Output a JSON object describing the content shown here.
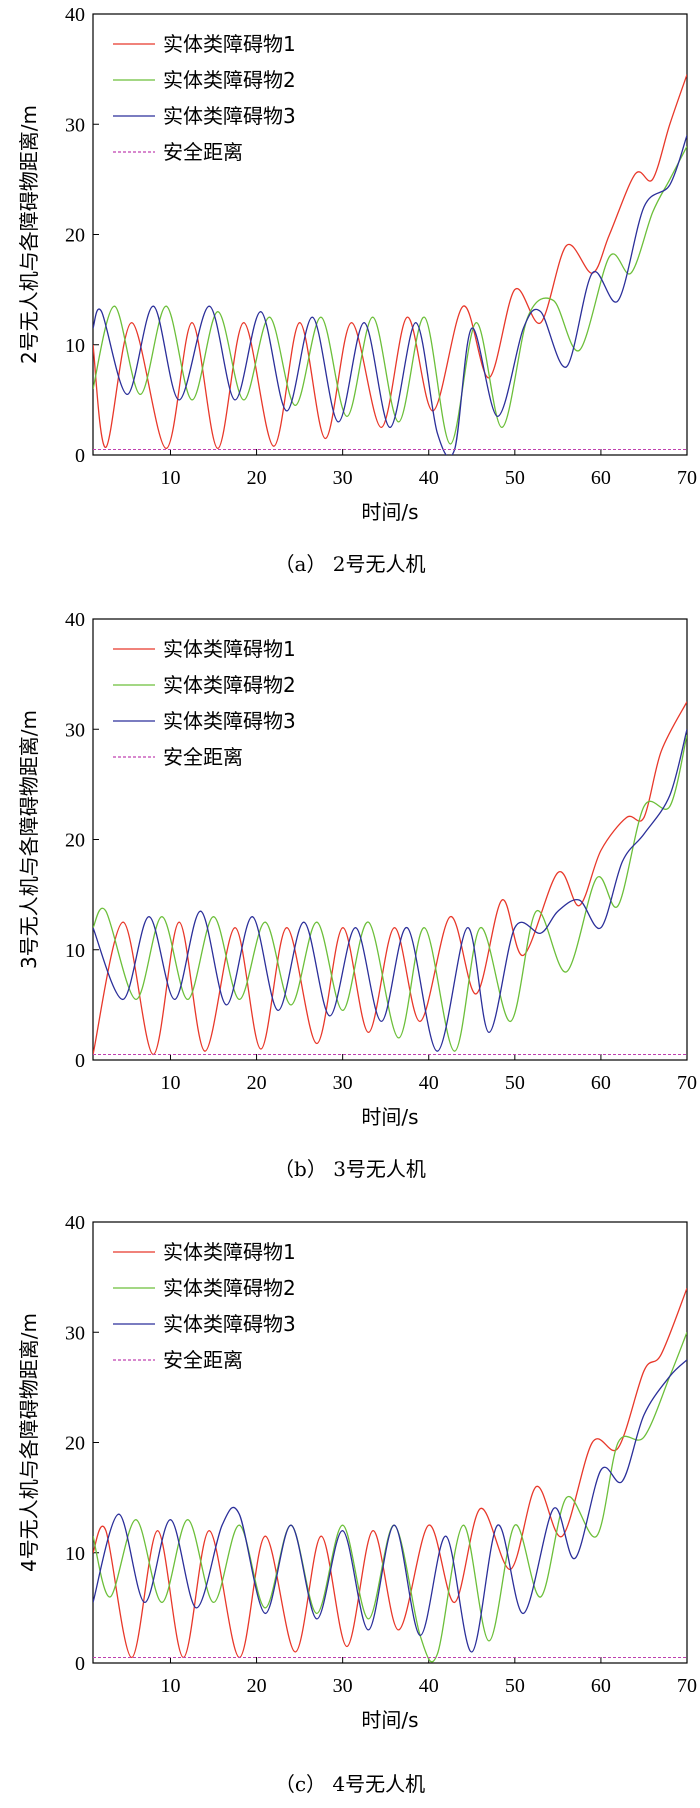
{
  "chart_data": [
    {
      "type": "line",
      "caption": "（a） 2号无人机",
      "xlabel": "时间/s",
      "ylabel": "2号无人机与各障碍物距离/m",
      "xlim": [
        1,
        70
      ],
      "ylim": [
        0,
        40
      ],
      "xticks": [
        10,
        20,
        30,
        40,
        50,
        60,
        70
      ],
      "yticks": [
        0,
        10,
        20,
        30,
        40
      ],
      "legend_position": "top-left",
      "colors": [
        "#e8382a",
        "#6cbf3a",
        "#2b2f9a",
        "#c040b0"
      ],
      "series": [
        {
          "name": "实体类障碍物1",
          "x": [
            1,
            2.5,
            5.5,
            9.5,
            12.5,
            15.5,
            18.5,
            22,
            25,
            28,
            31,
            34.5,
            37.5,
            40.5,
            44,
            47,
            50,
            53,
            56,
            59,
            61,
            64,
            66,
            68,
            70
          ],
          "y": [
            10,
            0.7,
            12,
            0.6,
            12,
            0.6,
            12,
            0.8,
            12,
            1.5,
            12,
            2.5,
            12.5,
            4,
            13.5,
            7,
            15,
            12,
            19,
            16.5,
            20,
            25.5,
            25,
            30,
            34.5
          ]
        },
        {
          "name": "实体类障碍物2",
          "x": [
            1,
            3.5,
            6.5,
            9.5,
            12.5,
            15.5,
            18.5,
            21.5,
            24.5,
            27.5,
            30.5,
            33.5,
            36.5,
            39.5,
            42.5,
            45.5,
            48.5,
            51.5,
            54.5,
            57.5,
            61,
            63.5,
            66,
            68,
            70
          ],
          "y": [
            6,
            13.5,
            5.5,
            13.5,
            5,
            13,
            5,
            12.5,
            4.5,
            12.5,
            3.5,
            12.5,
            3,
            12.5,
            1,
            12,
            2.5,
            12.5,
            14,
            9.5,
            18,
            16.5,
            22,
            25,
            28
          ]
        },
        {
          "name": "实体类障碍物3",
          "x": [
            1,
            2,
            5,
            8,
            11,
            14.5,
            17.5,
            20.5,
            23.5,
            26.5,
            29.5,
            32.5,
            35.5,
            38.5,
            41,
            43,
            45,
            48,
            51,
            53,
            56,
            59,
            62,
            65,
            68,
            70
          ],
          "y": [
            11.5,
            13,
            5.5,
            13.5,
            5,
            13.5,
            5,
            13,
            4,
            12.5,
            3,
            12,
            2.5,
            12,
            2,
            0.5,
            11.5,
            3.5,
            11.5,
            13,
            8,
            16.5,
            14,
            22.5,
            24.5,
            29
          ]
        },
        {
          "name": "安全距离",
          "x": [
            1,
            70
          ],
          "y": [
            0.5,
            0.5
          ]
        }
      ]
    },
    {
      "type": "line",
      "caption": "（b） 3号无人机",
      "xlabel": "时间/s",
      "ylabel": "3号无人机与各障碍物距离/m",
      "xlim": [
        1,
        70
      ],
      "ylim": [
        0,
        40
      ],
      "xticks": [
        10,
        20,
        30,
        40,
        50,
        60,
        70
      ],
      "yticks": [
        0,
        10,
        20,
        30,
        40
      ],
      "legend_position": "top-left",
      "colors": [
        "#e8382a",
        "#6cbf3a",
        "#2b2f9a",
        "#c040b0"
      ],
      "series": [
        {
          "name": "实体类障碍物1",
          "x": [
            1,
            4.5,
            8,
            11,
            14,
            17.5,
            20.5,
            23.5,
            27,
            30,
            33,
            36,
            39,
            42.5,
            45.5,
            48.5,
            51,
            55,
            57.5,
            60,
            63,
            65,
            67,
            70
          ],
          "y": [
            0.5,
            12.5,
            0.5,
            12.5,
            0.8,
            12,
            1,
            12,
            1.5,
            12,
            2.5,
            12,
            3.5,
            13,
            6,
            14.5,
            9.5,
            17,
            14,
            19,
            22,
            22,
            28,
            32.5
          ]
        },
        {
          "name": "实体类障碍物2",
          "x": [
            1,
            2.5,
            6,
            9,
            12,
            15,
            18,
            21,
            24,
            27,
            30,
            33,
            36.5,
            39.5,
            43,
            46,
            49.5,
            52.5,
            56,
            59.5,
            62,
            65,
            68,
            70
          ],
          "y": [
            12,
            13.5,
            5.5,
            13,
            5.5,
            13,
            5.5,
            12.5,
            5,
            12.5,
            4.5,
            12.5,
            2,
            12,
            0.8,
            12,
            3.5,
            13.5,
            8,
            16.5,
            14,
            23,
            23,
            29.5
          ]
        },
        {
          "name": "实体类障碍物3",
          "x": [
            1,
            4.5,
            7.5,
            10.5,
            13.5,
            16.5,
            19.5,
            22.5,
            25.5,
            28.5,
            31.5,
            34.5,
            37.5,
            41,
            44.5,
            47,
            50,
            53,
            55,
            57.5,
            60,
            62.5,
            65,
            68,
            70
          ],
          "y": [
            12,
            5.5,
            13,
            5.5,
            13.5,
            5,
            13,
            4.5,
            12.5,
            4,
            12,
            3.5,
            12,
            0.8,
            12,
            2.5,
            12,
            11.5,
            13.5,
            14.5,
            12,
            18,
            20.5,
            24,
            30
          ]
        },
        {
          "name": "安全距离",
          "x": [
            1,
            70
          ],
          "y": [
            0.5,
            0.5
          ]
        }
      ]
    },
    {
      "type": "line",
      "caption": "（c） 4号无人机",
      "xlabel": "时间/s",
      "ylabel": "4号无人机与各障碍物距离/m",
      "xlim": [
        1,
        70
      ],
      "ylim": [
        0,
        40
      ],
      "xticks": [
        10,
        20,
        30,
        40,
        50,
        60,
        70
      ],
      "yticks": [
        0,
        10,
        20,
        30,
        40
      ],
      "legend_position": "top-left",
      "colors": [
        "#e8382a",
        "#6cbf3a",
        "#2b2f9a",
        "#c040b0"
      ],
      "series": [
        {
          "name": "实体类障碍物1",
          "x": [
            1,
            2.5,
            5.5,
            8.5,
            11.5,
            14.5,
            18,
            21,
            24.5,
            27.5,
            30.5,
            33.5,
            36.5,
            40,
            43,
            46,
            49.5,
            52.5,
            55.5,
            59,
            62,
            65,
            67,
            70
          ],
          "y": [
            10,
            12,
            0.5,
            12,
            0.5,
            12,
            0.5,
            11.5,
            1,
            11.5,
            1.5,
            12,
            3,
            12.5,
            5.5,
            14,
            8.5,
            16,
            11.5,
            20,
            19.5,
            26.5,
            28,
            34
          ]
        },
        {
          "name": "实体类障碍物2",
          "x": [
            1,
            3,
            6,
            9,
            12,
            15,
            18,
            21,
            24,
            27,
            30,
            33,
            36,
            39,
            41,
            44,
            47,
            50,
            53,
            56,
            59.5,
            62,
            65,
            68,
            70
          ],
          "y": [
            11.5,
            6,
            13,
            5.5,
            13,
            5.5,
            12.5,
            5,
            12.5,
            4.5,
            12.5,
            4,
            12.5,
            2.5,
            0.8,
            12.5,
            2,
            12.5,
            6,
            15,
            11.5,
            20,
            20.5,
            26,
            30
          ]
        },
        {
          "name": "实体类障碍物3",
          "x": [
            1,
            4,
            7,
            10,
            13,
            16,
            18,
            21,
            24,
            27,
            30,
            33,
            36,
            39,
            42,
            45,
            48,
            51,
            54.5,
            57,
            60,
            62.5,
            65,
            68,
            70
          ],
          "y": [
            5.5,
            13.5,
            5.5,
            13,
            5,
            12.5,
            13.5,
            4.5,
            12.5,
            4,
            12,
            3,
            12.5,
            2.5,
            11.5,
            1,
            12.5,
            4.5,
            14,
            9.5,
            17.5,
            16.5,
            22.5,
            26,
            27.5
          ]
        },
        {
          "name": "安全距离",
          "x": [
            1,
            70
          ],
          "y": [
            0.5,
            0.5
          ]
        }
      ]
    }
  ]
}
